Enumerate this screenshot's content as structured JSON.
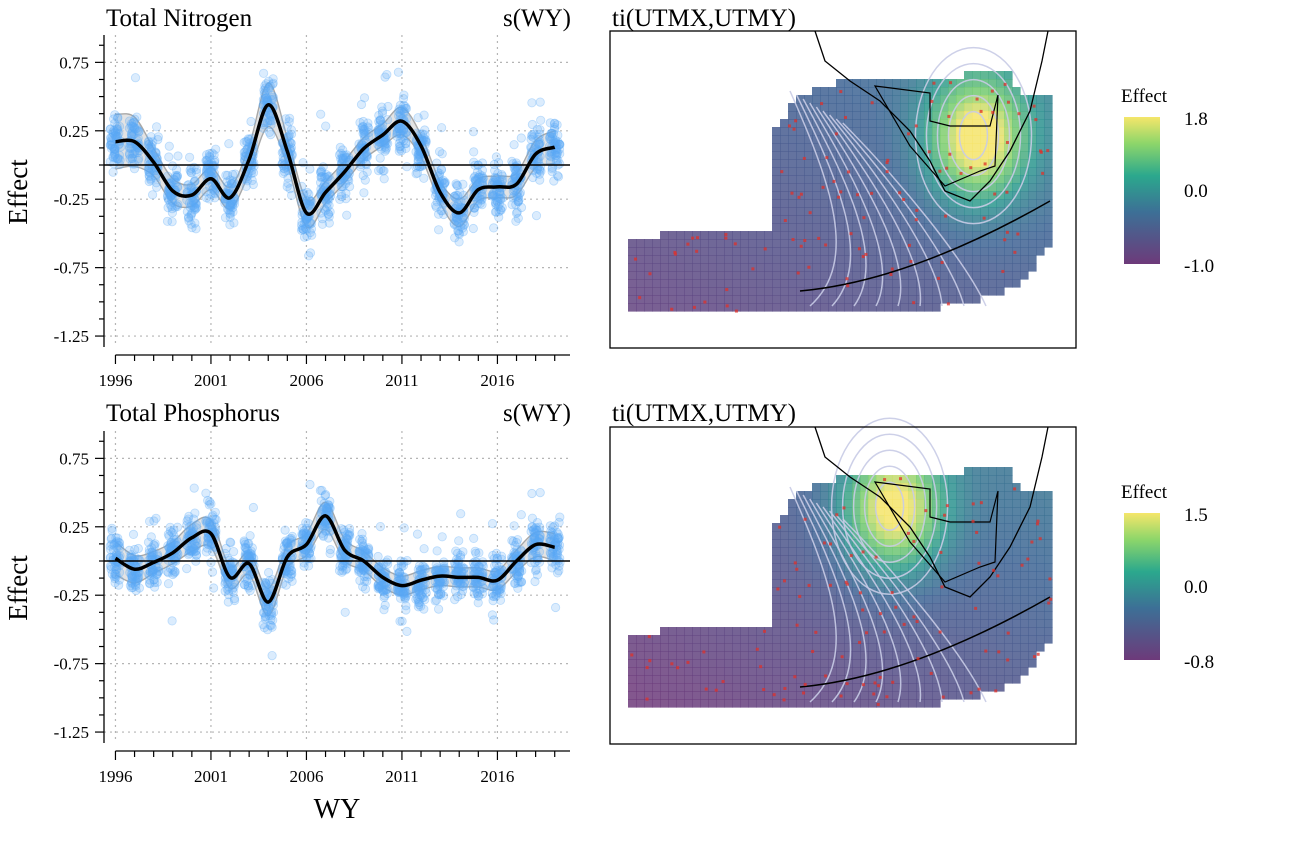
{
  "figure": {
    "x_axis_title": "WY",
    "y_axis_title": "Effect"
  },
  "chart_data": [
    {
      "type": "scatter",
      "panel": "top-left",
      "title": "Total Nitrogen",
      "subtitle": "s(WY)",
      "xlabel": "",
      "ylabel": "Effect",
      "xlim": [
        1995.4,
        2019.8
      ],
      "ylim": [
        -1.33,
        0.95
      ],
      "x_ticks": [
        1996,
        2001,
        2006,
        2011,
        2016
      ],
      "x_tick_labels": [
        "1996",
        "2001",
        "2006",
        "2011",
        "2016"
      ],
      "y_ticks": [
        0.75,
        0.25,
        -0.25,
        -0.75,
        -1.25
      ],
      "y_tick_labels": [
        "0.75",
        "0.25",
        "-0.25",
        "-0.75",
        "-1.25"
      ],
      "reference_line": 0,
      "grid": true,
      "partial_residual_spread": [
        0.32,
        0.4
      ],
      "series": [
        {
          "role": "smooth",
          "x": [
            1996,
            1997,
            1998,
            1999,
            2000,
            2001,
            2002,
            2003,
            2004,
            2005,
            2006,
            2007,
            2008,
            2009,
            2010,
            2011,
            2012,
            2013,
            2014,
            2015,
            2016,
            2017,
            2018,
            2019
          ],
          "values": [
            0.17,
            0.17,
            0.02,
            -0.19,
            -0.22,
            -0.1,
            -0.24,
            0.04,
            0.44,
            0.1,
            -0.35,
            -0.2,
            -0.05,
            0.12,
            0.22,
            0.32,
            0.14,
            -0.2,
            -0.35,
            -0.18,
            -0.16,
            -0.14,
            0.08,
            0.13
          ],
          "ci_halfwidth": [
            0.2,
            0.18,
            0.1,
            0.09,
            0.08,
            0.08,
            0.08,
            0.1,
            0.16,
            0.1,
            0.1,
            0.08,
            0.08,
            0.08,
            0.08,
            0.1,
            0.08,
            0.08,
            0.1,
            0.08,
            0.08,
            0.08,
            0.1,
            0.12
          ]
        }
      ]
    },
    {
      "type": "heatmap",
      "panel": "top-right",
      "title": "ti(UTMX,UTMY)",
      "legend": {
        "title": "Effect",
        "max_label": "1.8",
        "mid_label": "0.0",
        "min_label": "-1.0",
        "range": [
          -1.0,
          1.8
        ]
      },
      "hotspot": {
        "x": 0.78,
        "y": 0.33,
        "amplitude": 2.2
      }
    },
    {
      "type": "scatter",
      "panel": "bottom-left",
      "title": "Total Phosphorus",
      "subtitle": "s(WY)",
      "xlabel": "WY",
      "ylabel": "Effect",
      "xlim": [
        1995.4,
        2019.8
      ],
      "ylim": [
        -1.33,
        0.95
      ],
      "x_ticks": [
        1996,
        2001,
        2006,
        2011,
        2016
      ],
      "x_tick_labels": [
        "1996",
        "2001",
        "2006",
        "2011",
        "2016"
      ],
      "y_ticks": [
        0.75,
        0.25,
        -0.25,
        -0.75,
        -1.25
      ],
      "y_tick_labels": [
        "0.75",
        "0.25",
        "-0.25",
        "-0.75",
        "-1.25"
      ],
      "reference_line": 0,
      "grid": true,
      "partial_residual_spread": [
        0.28,
        0.36
      ],
      "series": [
        {
          "role": "smooth",
          "x": [
            1996,
            1997,
            1998,
            1999,
            2000,
            2001,
            2002,
            2003,
            2004,
            2005,
            2006,
            2007,
            2008,
            2009,
            2010,
            2011,
            2012,
            2013,
            2014,
            2015,
            2016,
            2017,
            2018,
            2019
          ],
          "values": [
            0.02,
            -0.06,
            -0.01,
            0.06,
            0.17,
            0.2,
            -0.12,
            -0.02,
            -0.3,
            0.03,
            0.12,
            0.33,
            0.08,
            0.0,
            -0.12,
            -0.18,
            -0.14,
            -0.11,
            -0.12,
            -0.12,
            -0.14,
            0.0,
            0.12,
            0.1
          ],
          "ci_halfwidth": [
            0.12,
            0.1,
            0.08,
            0.08,
            0.1,
            0.1,
            0.08,
            0.08,
            0.1,
            0.08,
            0.08,
            0.1,
            0.08,
            0.07,
            0.07,
            0.07,
            0.07,
            0.07,
            0.07,
            0.07,
            0.07,
            0.08,
            0.09,
            0.1
          ]
        }
      ]
    },
    {
      "type": "heatmap",
      "panel": "bottom-right",
      "title": "ti(UTMX,UTMY)",
      "legend": {
        "title": "Effect",
        "max_label": "1.5",
        "mid_label": "0.0",
        "min_label": "-0.8",
        "range": [
          -0.8,
          1.5
        ]
      },
      "hotspot": {
        "x": 0.6,
        "y": 0.25,
        "amplitude": 1.8
      }
    }
  ],
  "colors": {
    "points": "#5aaaf5",
    "ci_fill": "#d9d9d9",
    "ci_line": "#a8a8a8",
    "smooth": "#000000",
    "grid": "#b5b5b5",
    "coast": "#000000",
    "stations": "#e0302a",
    "contours": "#c8cbe6",
    "viridis": [
      "#440154",
      "#3b528b",
      "#21908c",
      "#5dc863",
      "#fde725"
    ]
  }
}
